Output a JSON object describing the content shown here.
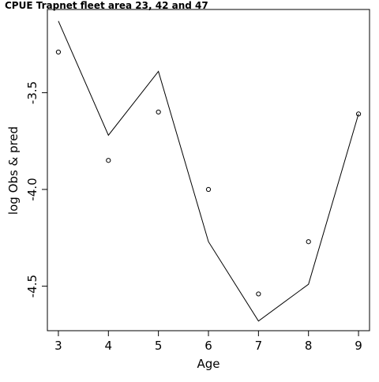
{
  "chart_data": {
    "type": "line",
    "title": "CPUE Trapnet fleet area 23, 42 and 47",
    "xlabel": "Age",
    "ylabel": "log Obs & pred",
    "x": [
      3,
      4,
      5,
      6,
      7,
      8,
      9
    ],
    "xticks": [
      "3",
      "4",
      "5",
      "6",
      "7",
      "8",
      "9"
    ],
    "yticks": [
      {
        "value": -3.5,
        "label": "-3.5"
      },
      {
        "value": -4.0,
        "label": "-4.0"
      },
      {
        "value": -4.5,
        "label": "-4.5"
      }
    ],
    "xlim": [
      2.78,
      9.22
    ],
    "ylim": [
      -4.73,
      -3.07
    ],
    "grid": false,
    "series": [
      {
        "style": "line",
        "color": "#000000",
        "values": [
          -3.13,
          -3.72,
          -3.39,
          -4.27,
          -4.68,
          -4.49,
          -3.61
        ]
      },
      {
        "style": "points",
        "marker": "open-circle",
        "color": "#000000",
        "values": [
          -3.29,
          -3.85,
          -3.6,
          -4.0,
          -4.54,
          -4.27,
          -3.61
        ]
      }
    ]
  }
}
